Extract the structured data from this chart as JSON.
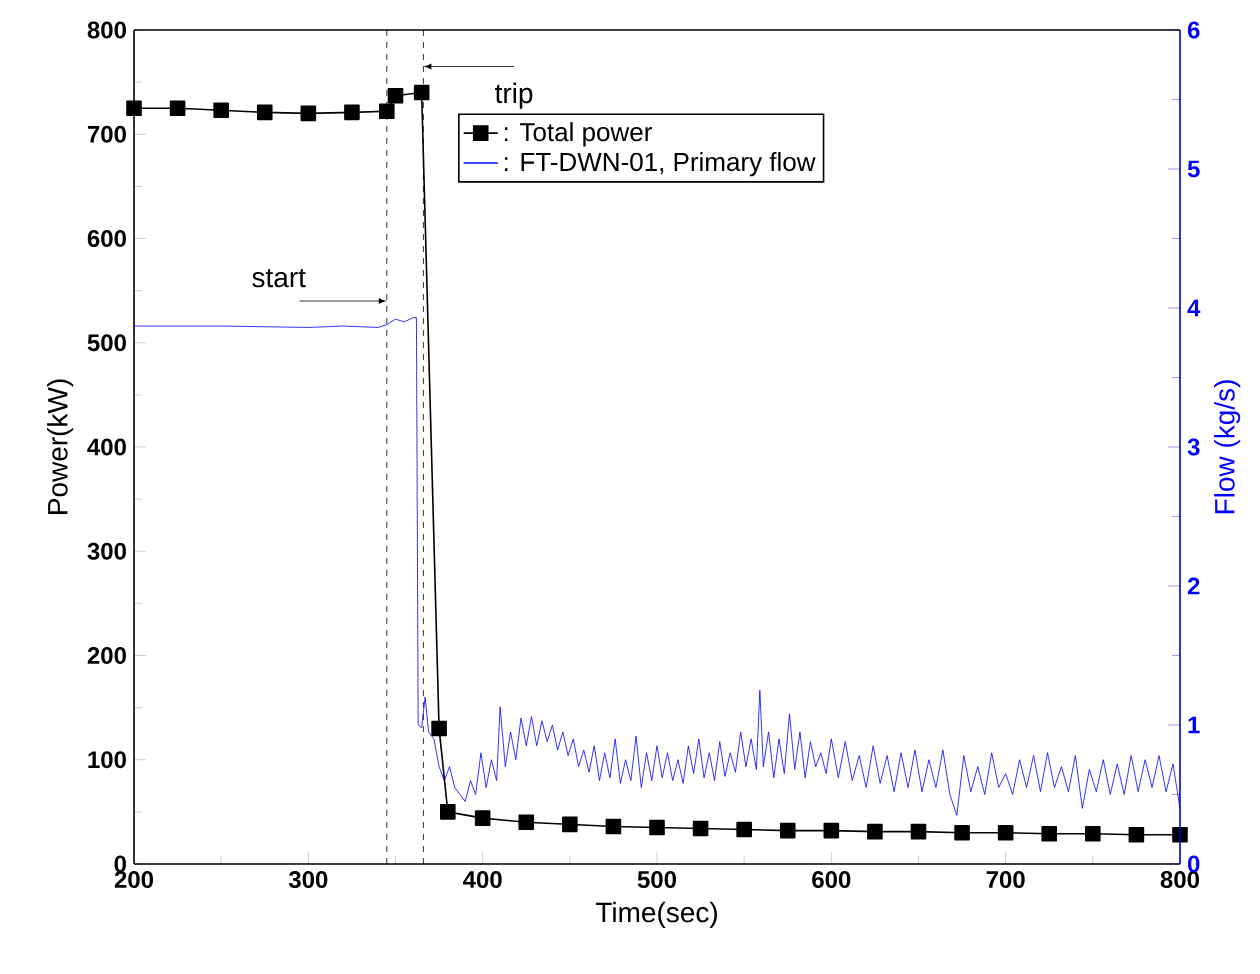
{
  "chart_data": {
    "type": "line",
    "xlabel": "Time(sec)",
    "ylabel": "Power(kW)",
    "y2label": "Flow (kg/s)",
    "xlim": [
      200,
      800
    ],
    "xticks": [
      200,
      300,
      400,
      500,
      600,
      700,
      800
    ],
    "ylim": [
      0,
      800
    ],
    "yticks": [
      0,
      100,
      200,
      300,
      400,
      500,
      600,
      700,
      800
    ],
    "y2lim": [
      0,
      6
    ],
    "y2ticks": [
      0,
      1,
      2,
      3,
      4,
      5,
      6
    ],
    "legend": "top right",
    "grid": false,
    "series": [
      {
        "name": ": Total power",
        "color": "#000000",
        "marker": "square",
        "x": [
          200,
          225,
          250,
          275,
          300,
          325,
          345,
          350,
          365,
          375,
          380,
          400,
          425,
          450,
          475,
          500,
          525,
          550,
          575,
          600,
          625,
          650,
          675,
          700,
          725,
          750,
          775,
          800
        ],
        "values": [
          725,
          725,
          723,
          721,
          720,
          721,
          722,
          737,
          740,
          130,
          50,
          44,
          40,
          38,
          36,
          35,
          34,
          33,
          32,
          32,
          31,
          31,
          30,
          30,
          29,
          29,
          28,
          28
        ]
      },
      {
        "name": ": FT-DWN-01, Primary flow",
        "color": "#0000ff",
        "marker": "none",
        "axis": "y2",
        "x": [
          200,
          250,
          300,
          320,
          340,
          345,
          350,
          355,
          360,
          362,
          363,
          365,
          367,
          369,
          372,
          375,
          378,
          381,
          384,
          387,
          390,
          393,
          396,
          399,
          402,
          405,
          408,
          410,
          413,
          416,
          419,
          422,
          425,
          428,
          431,
          434,
          437,
          440,
          443,
          446,
          449,
          452,
          455,
          458,
          461,
          464,
          467,
          470,
          473,
          476,
          479,
          482,
          485,
          488,
          491,
          494,
          497,
          500,
          503,
          506,
          509,
          512,
          515,
          518,
          521,
          524,
          527,
          530,
          533,
          536,
          539,
          542,
          545,
          548,
          551,
          554,
          557,
          559,
          561,
          564,
          567,
          570,
          573,
          576,
          579,
          582,
          585,
          588,
          591,
          594,
          597,
          600,
          604,
          608,
          612,
          616,
          620,
          624,
          628,
          632,
          636,
          640,
          644,
          648,
          652,
          656,
          660,
          664,
          668,
          672,
          676,
          680,
          684,
          688,
          692,
          696,
          700,
          704,
          708,
          712,
          716,
          720,
          724,
          728,
          732,
          736,
          740,
          744,
          748,
          752,
          756,
          760,
          764,
          768,
          772,
          776,
          780,
          784,
          788,
          792,
          796,
          800
        ],
        "values": [
          3.87,
          3.87,
          3.86,
          3.87,
          3.86,
          3.88,
          3.92,
          3.9,
          3.93,
          3.93,
          1.0,
          0.98,
          1.2,
          0.95,
          0.9,
          0.7,
          0.6,
          0.7,
          0.55,
          0.5,
          0.45,
          0.6,
          0.5,
          0.8,
          0.55,
          0.75,
          0.6,
          1.13,
          0.7,
          0.95,
          0.75,
          1.05,
          0.85,
          1.06,
          0.85,
          1.03,
          0.88,
          1.0,
          0.82,
          0.95,
          0.78,
          0.9,
          0.7,
          0.82,
          0.66,
          0.85,
          0.6,
          0.8,
          0.62,
          0.9,
          0.58,
          0.75,
          0.6,
          0.92,
          0.55,
          0.8,
          0.6,
          0.85,
          0.62,
          0.8,
          0.6,
          0.75,
          0.58,
          0.85,
          0.65,
          0.9,
          0.62,
          0.8,
          0.6,
          0.88,
          0.63,
          0.8,
          0.66,
          0.95,
          0.7,
          0.9,
          0.68,
          1.25,
          0.7,
          0.95,
          0.62,
          0.9,
          0.65,
          1.08,
          0.68,
          0.95,
          0.62,
          0.88,
          0.7,
          0.8,
          0.65,
          0.9,
          0.62,
          0.88,
          0.6,
          0.78,
          0.55,
          0.85,
          0.58,
          0.78,
          0.52,
          0.8,
          0.55,
          0.82,
          0.52,
          0.75,
          0.55,
          0.82,
          0.5,
          0.35,
          0.78,
          0.52,
          0.7,
          0.5,
          0.8,
          0.55,
          0.65,
          0.5,
          0.75,
          0.55,
          0.78,
          0.52,
          0.8,
          0.55,
          0.7,
          0.52,
          0.78,
          0.4,
          0.68,
          0.52,
          0.75,
          0.5,
          0.72,
          0.5,
          0.78,
          0.52,
          0.75,
          0.55,
          0.78,
          0.52,
          0.72,
          0.4
        ]
      }
    ],
    "ref_lines": [
      {
        "axis": "x",
        "value": 345,
        "color": "#000000",
        "line_style": "dashed"
      },
      {
        "axis": "x",
        "value": 366,
        "color": "#000000",
        "line_style": "dashed"
      }
    ],
    "annotations": [
      {
        "text": "start",
        "x": 345,
        "y": 540
      },
      {
        "text": "trip",
        "x": 366,
        "y": 765
      }
    ]
  }
}
